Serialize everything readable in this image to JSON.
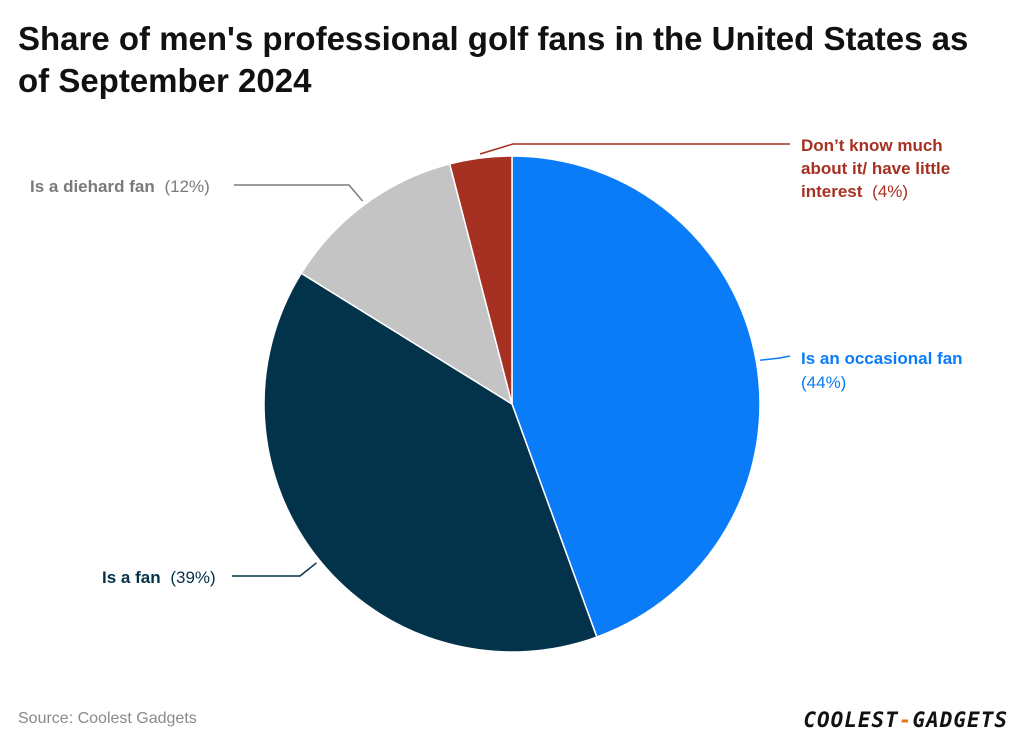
{
  "chart_data": {
    "type": "pie",
    "title": "Share of men's professional golf fans in the United States as of September 2024",
    "slices": [
      {
        "name": "Is an occasional fan",
        "value": 44,
        "value_label": "(44%)",
        "color": "#0a7cf7"
      },
      {
        "name": "Is a fan",
        "value": 39,
        "value_label": "(39%)",
        "color": "#03324b"
      },
      {
        "name": "Is a diehard fan",
        "value": 12,
        "value_label": "(12%)",
        "color": "#c4c4c4"
      },
      {
        "name": "Don’t know much about it/ have little interest",
        "value": 4,
        "value_label": "(4%)",
        "color": "#a63122"
      }
    ],
    "label_colors": {
      "Is an occasional fan": "#0a7cf7",
      "Is a fan": "#03324b",
      "Is a diehard fan": "#7a7a7a",
      "Don’t know much about it/ have little interest": "#a63122"
    }
  },
  "source": "Source: Coolest Gadgets",
  "logo": {
    "part1": "COOLEST",
    "dash": "-",
    "part2": "GADGETS"
  }
}
